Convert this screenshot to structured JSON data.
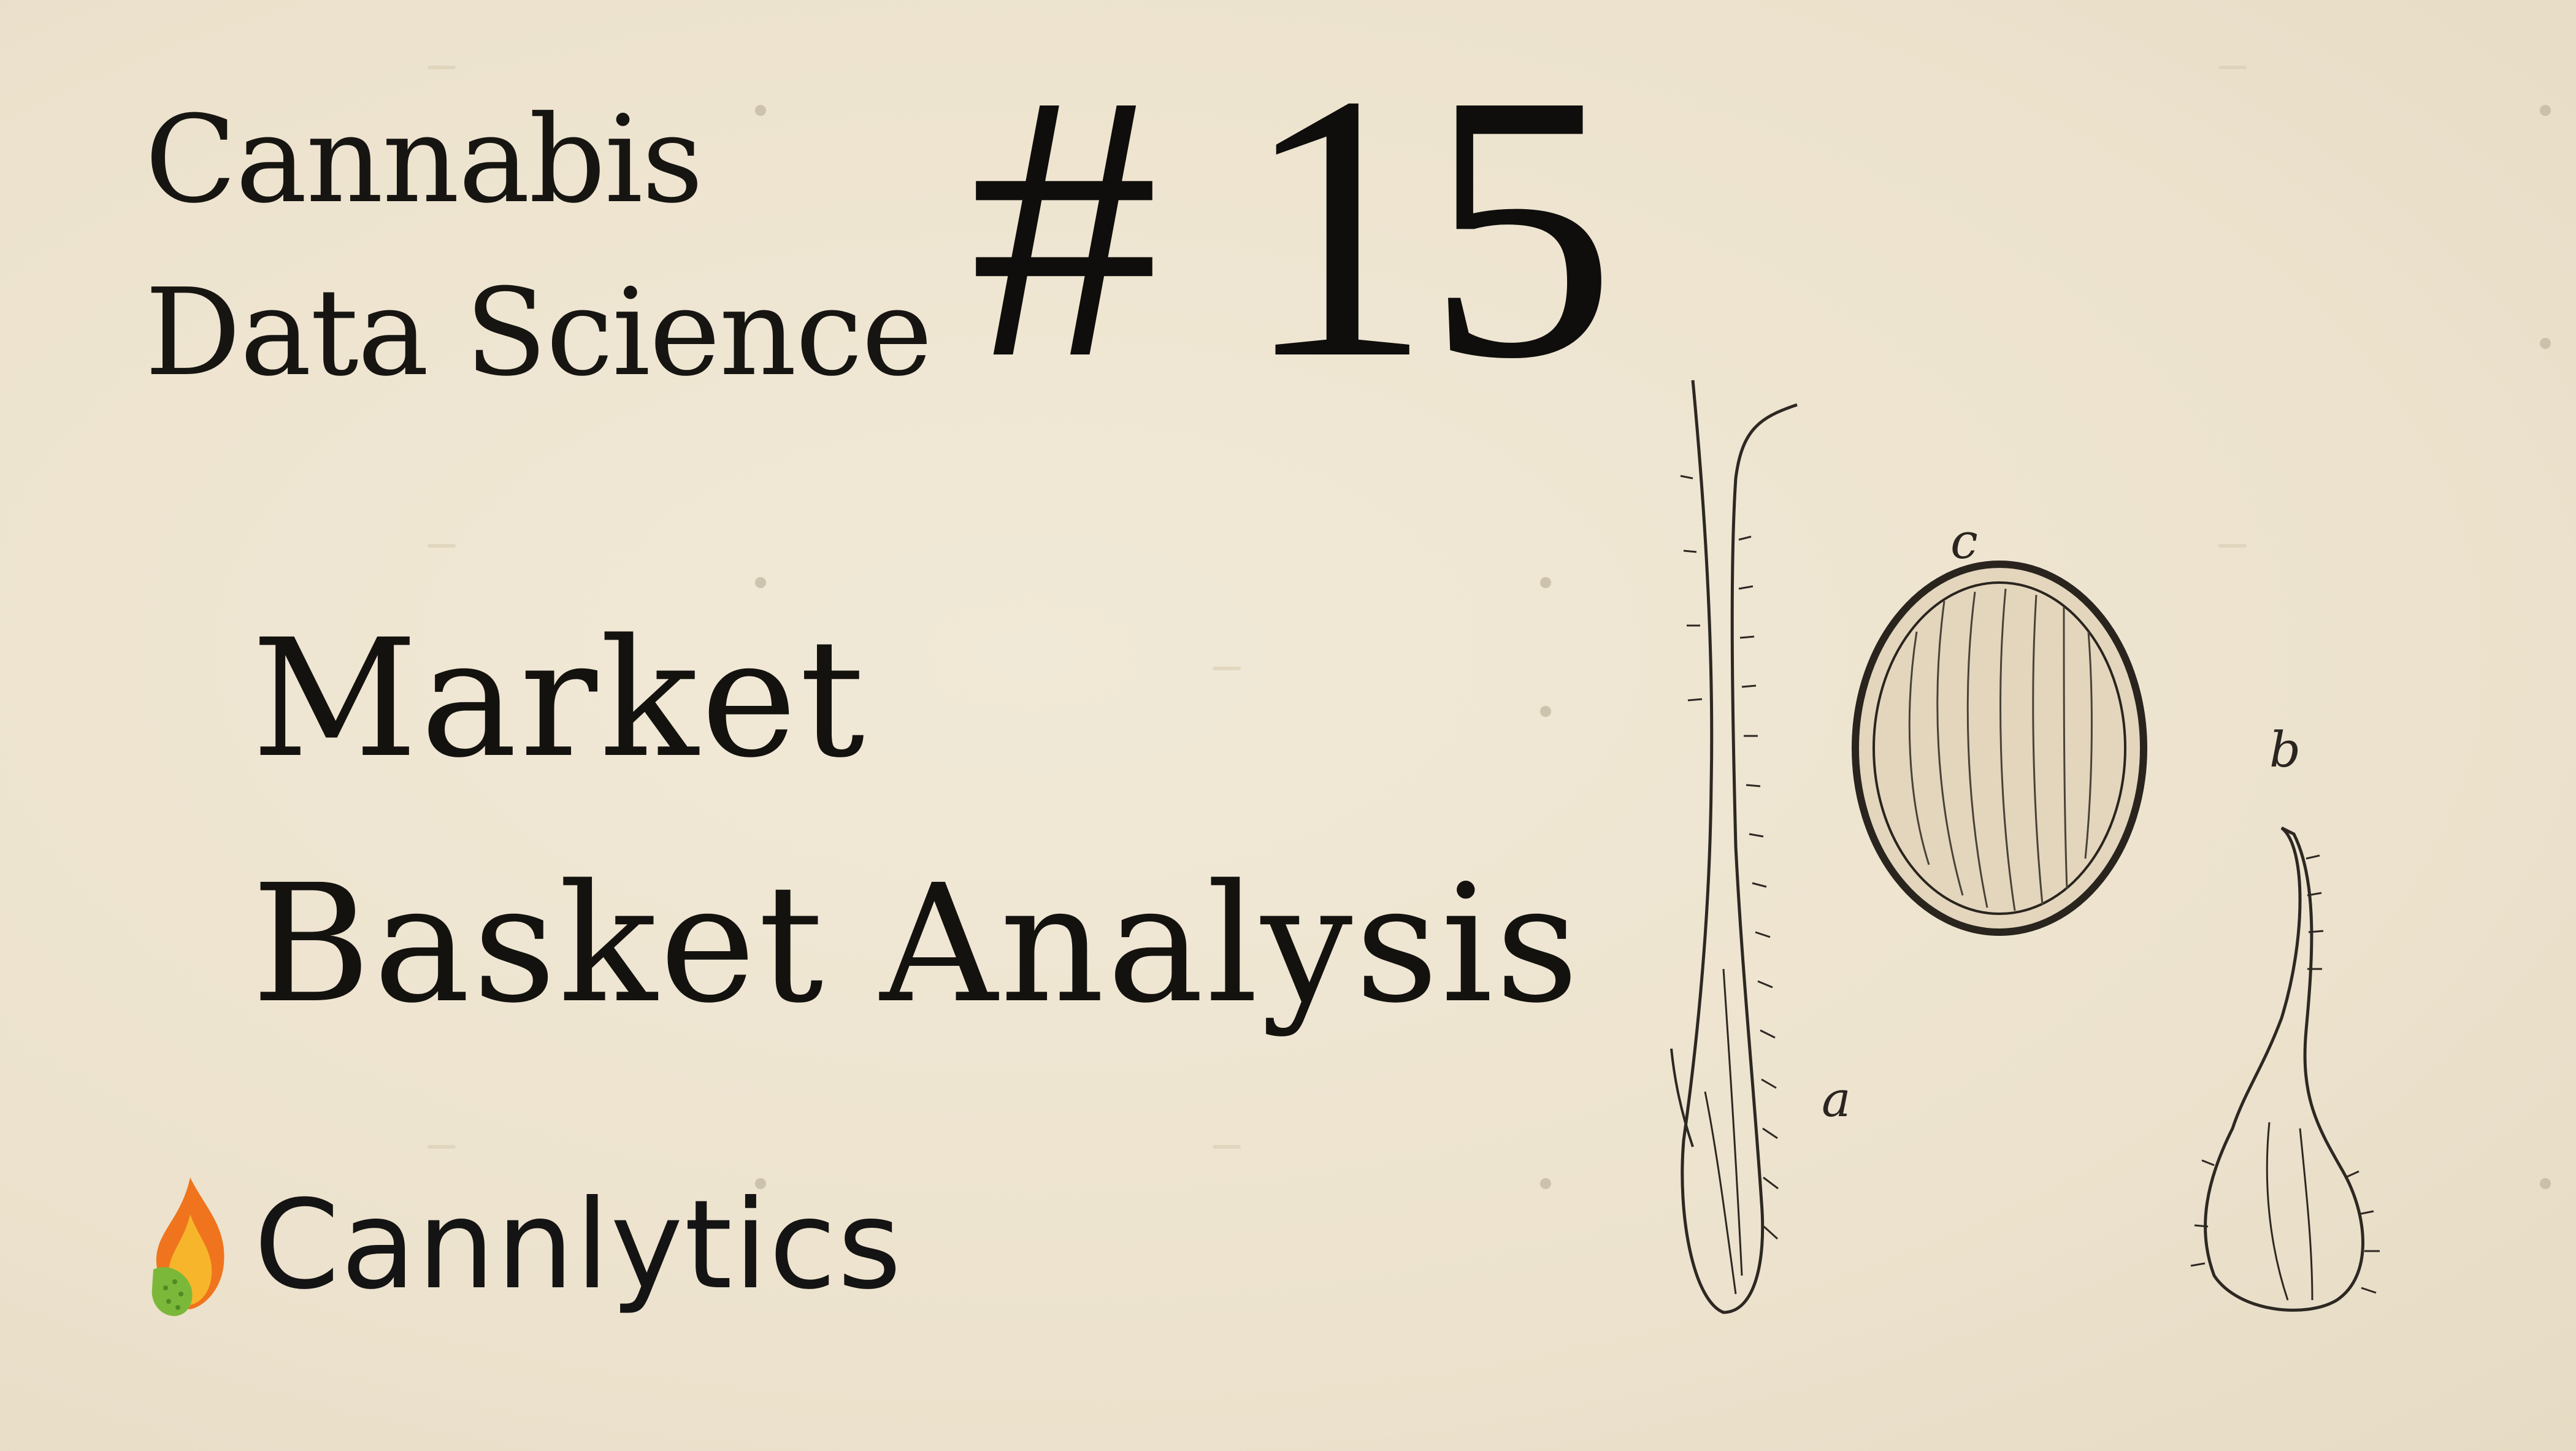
{
  "series": {
    "line1": "Cannabis",
    "line2": "Data Science"
  },
  "episode": "# 15",
  "topic": {
    "line1": "Market",
    "line2": "Basket Analysis"
  },
  "brand": {
    "name": "Cannlytics",
    "logo_icon": "flame-leaf-icon"
  },
  "illustration": {
    "labels": {
      "a": "a",
      "b": "b",
      "c": "c"
    }
  },
  "colors": {
    "background": "#efe6d3",
    "ink": "#141210",
    "flame_orange": "#f0741d",
    "flame_yellow": "#f7b52b",
    "leaf_green": "#7bb83a"
  }
}
